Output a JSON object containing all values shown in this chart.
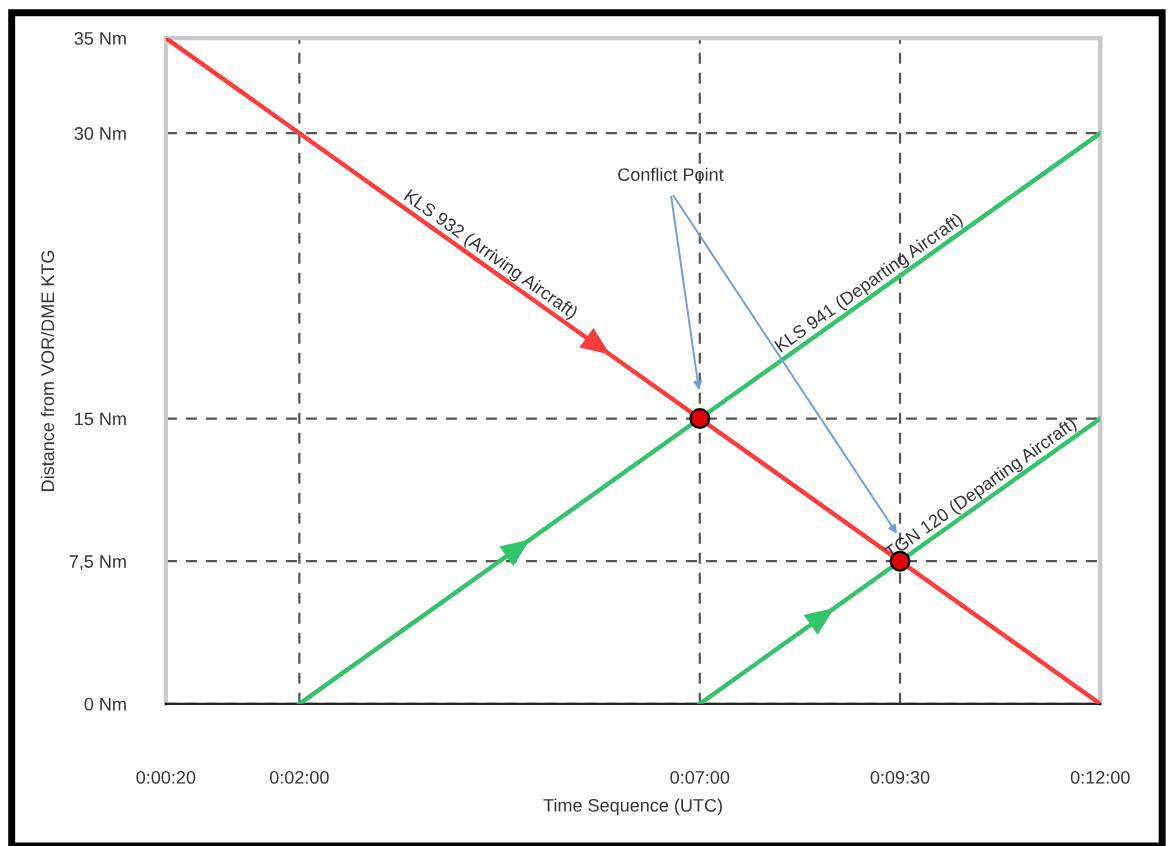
{
  "chart_data": {
    "type": "line",
    "xlabel": "Time Sequence (UTC)",
    "ylabel": "Distance from VOR/DME KTG",
    "series": [
      {
        "name": "KLS 932 (Arriving Aircraft)",
        "color": "#ff3b3b",
        "x": [
          0.3333,
          12
        ],
        "values": [
          35,
          0
        ]
      },
      {
        "name": "KLS 941 (Departing Aircraft)",
        "color": "#33c46a",
        "x": [
          2,
          7,
          12
        ],
        "values": [
          0,
          15,
          30
        ]
      },
      {
        "name": "TGN 120 (Departing Aircraft)",
        "color": "#33c46a",
        "x": [
          7,
          9.5,
          12
        ],
        "values": [
          0,
          7.5,
          15
        ]
      },
      {
        "type": "scatter",
        "marker": "circle",
        "color": "#e00000",
        "x": [
          7,
          9.5
        ],
        "values": [
          15,
          7.5
        ]
      }
    ],
    "xlim": [
      0.3333,
      12
    ],
    "ylim": [
      0,
      35
    ],
    "xticks": [
      {
        "value": 0.3333,
        "label": "0:00:20"
      },
      {
        "value": 2,
        "label": "0:02:00"
      },
      {
        "value": 7,
        "label": "0:07:00"
      },
      {
        "value": 9.5,
        "label": "0:09:30"
      },
      {
        "value": 12,
        "label": "0:12:00"
      }
    ],
    "yticks": [
      {
        "value": 0,
        "label": "0 Nm"
      },
      {
        "value": 7.5,
        "label": "7,5 Nm"
      },
      {
        "value": 15,
        "label": "15 Nm"
      },
      {
        "value": 30,
        "label": "30 Nm"
      },
      {
        "value": 35,
        "label": "35 Nm"
      }
    ],
    "annotations": [
      "Conflict Point"
    ],
    "grid": true,
    "marker": "none",
    "line_style": "solid"
  }
}
